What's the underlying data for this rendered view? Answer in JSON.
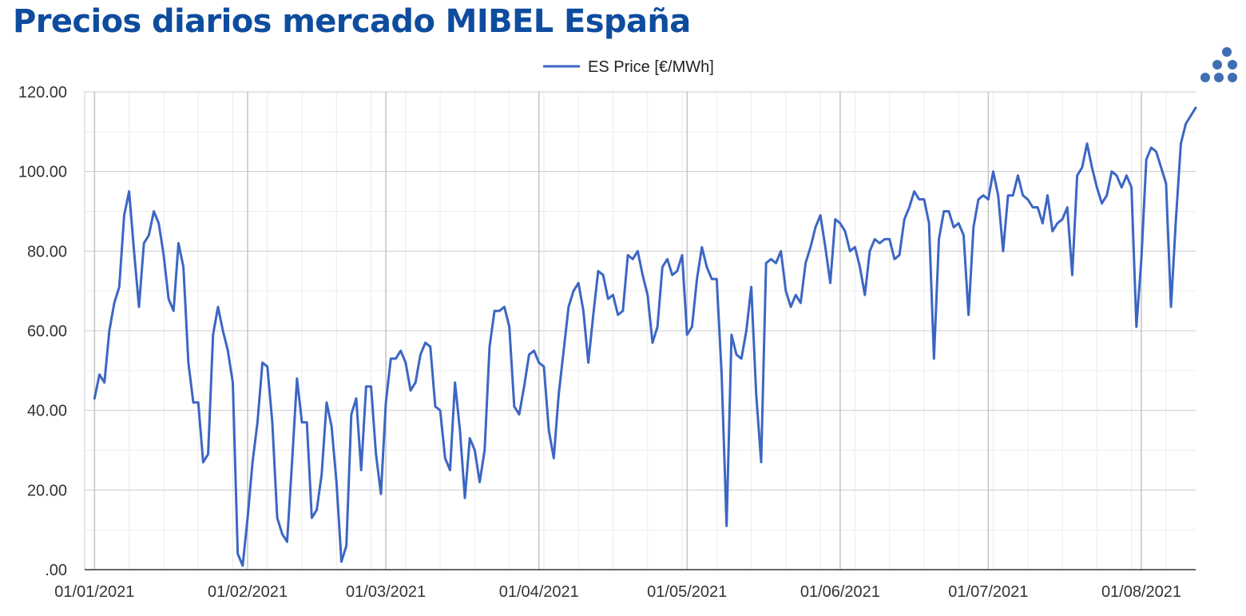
{
  "header": {
    "title": "Precios diarios mercado MIBEL España"
  },
  "logo": {
    "icon": "dots-logo-icon",
    "color": "#3f6fb3"
  },
  "chart_data": {
    "type": "line",
    "title": "Precios diarios mercado MIBEL España",
    "xlabel": "",
    "ylabel": "",
    "ylim": [
      0,
      120
    ],
    "y_ticks": [
      0,
      20,
      40,
      60,
      80,
      100,
      120
    ],
    "y_tick_labels": [
      ".00",
      "20.00",
      "40.00",
      "60.00",
      "80.00",
      "100.00",
      "120.00"
    ],
    "x_ticks": [
      "2021-01-01",
      "2021-02-01",
      "2021-03-01",
      "2021-04-01",
      "2021-05-01",
      "2021-06-01",
      "2021-07-01",
      "2021-08-01"
    ],
    "x_tick_labels": [
      "01/01/2021",
      "01/02/2021",
      "01/03/2021",
      "01/04/2021",
      "01/05/2021",
      "01/06/2021",
      "01/07/2021",
      "01/08/2021"
    ],
    "x_range": [
      "2020-12-30",
      "2021-08-12"
    ],
    "grid": true,
    "legend_position": "top-center",
    "series_color": "#3c66c4",
    "series": [
      {
        "name": "ES Price [€/MWh]",
        "points": [
          [
            "2021-01-01",
            43
          ],
          [
            "2021-01-02",
            49
          ],
          [
            "2021-01-03",
            47
          ],
          [
            "2021-01-04",
            60
          ],
          [
            "2021-01-05",
            67
          ],
          [
            "2021-01-06",
            71
          ],
          [
            "2021-01-07",
            89
          ],
          [
            "2021-01-08",
            95
          ],
          [
            "2021-01-09",
            80
          ],
          [
            "2021-01-10",
            66
          ],
          [
            "2021-01-11",
            82
          ],
          [
            "2021-01-12",
            84
          ],
          [
            "2021-01-13",
            90
          ],
          [
            "2021-01-14",
            87
          ],
          [
            "2021-01-15",
            79
          ],
          [
            "2021-01-16",
            68
          ],
          [
            "2021-01-17",
            65
          ],
          [
            "2021-01-18",
            82
          ],
          [
            "2021-01-19",
            76
          ],
          [
            "2021-01-20",
            52
          ],
          [
            "2021-01-21",
            42
          ],
          [
            "2021-01-22",
            42
          ],
          [
            "2021-01-23",
            27
          ],
          [
            "2021-01-24",
            29
          ],
          [
            "2021-01-25",
            59
          ],
          [
            "2021-01-26",
            66
          ],
          [
            "2021-01-27",
            60
          ],
          [
            "2021-01-28",
            55
          ],
          [
            "2021-01-29",
            47
          ],
          [
            "2021-01-30",
            4
          ],
          [
            "2021-01-31",
            1
          ],
          [
            "2021-02-01",
            13
          ],
          [
            "2021-02-02",
            27
          ],
          [
            "2021-02-03",
            37
          ],
          [
            "2021-02-04",
            52
          ],
          [
            "2021-02-05",
            51
          ],
          [
            "2021-02-06",
            37
          ],
          [
            "2021-02-07",
            13
          ],
          [
            "2021-02-08",
            9
          ],
          [
            "2021-02-09",
            7
          ],
          [
            "2021-02-10",
            27
          ],
          [
            "2021-02-11",
            48
          ],
          [
            "2021-02-12",
            37
          ],
          [
            "2021-02-13",
            37
          ],
          [
            "2021-02-14",
            13
          ],
          [
            "2021-02-15",
            15
          ],
          [
            "2021-02-16",
            24
          ],
          [
            "2021-02-17",
            42
          ],
          [
            "2021-02-18",
            36
          ],
          [
            "2021-02-19",
            22
          ],
          [
            "2021-02-20",
            2
          ],
          [
            "2021-02-21",
            6
          ],
          [
            "2021-02-22",
            39
          ],
          [
            "2021-02-23",
            43
          ],
          [
            "2021-02-24",
            25
          ],
          [
            "2021-02-25",
            46
          ],
          [
            "2021-02-26",
            46
          ],
          [
            "2021-02-27",
            29
          ],
          [
            "2021-02-28",
            19
          ],
          [
            "2021-03-01",
            42
          ],
          [
            "2021-03-02",
            53
          ],
          [
            "2021-03-03",
            53
          ],
          [
            "2021-03-04",
            55
          ],
          [
            "2021-03-05",
            52
          ],
          [
            "2021-03-06",
            45
          ],
          [
            "2021-03-07",
            47
          ],
          [
            "2021-03-08",
            54
          ],
          [
            "2021-03-09",
            57
          ],
          [
            "2021-03-10",
            56
          ],
          [
            "2021-03-11",
            41
          ],
          [
            "2021-03-12",
            40
          ],
          [
            "2021-03-13",
            28
          ],
          [
            "2021-03-14",
            25
          ],
          [
            "2021-03-15",
            47
          ],
          [
            "2021-03-16",
            35
          ],
          [
            "2021-03-17",
            18
          ],
          [
            "2021-03-18",
            33
          ],
          [
            "2021-03-19",
            30
          ],
          [
            "2021-03-20",
            22
          ],
          [
            "2021-03-21",
            30
          ],
          [
            "2021-03-22",
            56
          ],
          [
            "2021-03-23",
            65
          ],
          [
            "2021-03-24",
            65
          ],
          [
            "2021-03-25",
            66
          ],
          [
            "2021-03-26",
            61
          ],
          [
            "2021-03-27",
            41
          ],
          [
            "2021-03-28",
            39
          ],
          [
            "2021-03-29",
            46
          ],
          [
            "2021-03-30",
            54
          ],
          [
            "2021-03-31",
            55
          ],
          [
            "2021-04-01",
            52
          ],
          [
            "2021-04-02",
            51
          ],
          [
            "2021-04-03",
            35
          ],
          [
            "2021-04-04",
            28
          ],
          [
            "2021-04-05",
            44
          ],
          [
            "2021-04-06",
            55
          ],
          [
            "2021-04-07",
            66
          ],
          [
            "2021-04-08",
            70
          ],
          [
            "2021-04-09",
            72
          ],
          [
            "2021-04-10",
            65
          ],
          [
            "2021-04-11",
            52
          ],
          [
            "2021-04-12",
            64
          ],
          [
            "2021-04-13",
            75
          ],
          [
            "2021-04-14",
            74
          ],
          [
            "2021-04-15",
            68
          ],
          [
            "2021-04-16",
            69
          ],
          [
            "2021-04-17",
            64
          ],
          [
            "2021-04-18",
            65
          ],
          [
            "2021-04-19",
            79
          ],
          [
            "2021-04-20",
            78
          ],
          [
            "2021-04-21",
            80
          ],
          [
            "2021-04-22",
            74
          ],
          [
            "2021-04-23",
            69
          ],
          [
            "2021-04-24",
            57
          ],
          [
            "2021-04-25",
            61
          ],
          [
            "2021-04-26",
            76
          ],
          [
            "2021-04-27",
            78
          ],
          [
            "2021-04-28",
            74
          ],
          [
            "2021-04-29",
            75
          ],
          [
            "2021-04-30",
            79
          ],
          [
            "2021-05-01",
            59
          ],
          [
            "2021-05-02",
            61
          ],
          [
            "2021-05-03",
            73
          ],
          [
            "2021-05-04",
            81
          ],
          [
            "2021-05-05",
            76
          ],
          [
            "2021-05-06",
            73
          ],
          [
            "2021-05-07",
            73
          ],
          [
            "2021-05-08",
            49
          ],
          [
            "2021-05-09",
            11
          ],
          [
            "2021-05-10",
            59
          ],
          [
            "2021-05-11",
            54
          ],
          [
            "2021-05-12",
            53
          ],
          [
            "2021-05-13",
            60
          ],
          [
            "2021-05-14",
            71
          ],
          [
            "2021-05-15",
            44
          ],
          [
            "2021-05-16",
            27
          ],
          [
            "2021-05-17",
            77
          ],
          [
            "2021-05-18",
            78
          ],
          [
            "2021-05-19",
            77
          ],
          [
            "2021-05-20",
            80
          ],
          [
            "2021-05-21",
            70
          ],
          [
            "2021-05-22",
            66
          ],
          [
            "2021-05-23",
            69
          ],
          [
            "2021-05-24",
            67
          ],
          [
            "2021-05-25",
            77
          ],
          [
            "2021-05-26",
            81
          ],
          [
            "2021-05-27",
            86
          ],
          [
            "2021-05-28",
            89
          ],
          [
            "2021-05-29",
            81
          ],
          [
            "2021-05-30",
            72
          ],
          [
            "2021-05-31",
            88
          ],
          [
            "2021-06-01",
            87
          ],
          [
            "2021-06-02",
            85
          ],
          [
            "2021-06-03",
            80
          ],
          [
            "2021-06-04",
            81
          ],
          [
            "2021-06-05",
            76
          ],
          [
            "2021-06-06",
            69
          ],
          [
            "2021-06-07",
            80
          ],
          [
            "2021-06-08",
            83
          ],
          [
            "2021-06-09",
            82
          ],
          [
            "2021-06-10",
            83
          ],
          [
            "2021-06-11",
            83
          ],
          [
            "2021-06-12",
            78
          ],
          [
            "2021-06-13",
            79
          ],
          [
            "2021-06-14",
            88
          ],
          [
            "2021-06-15",
            91
          ],
          [
            "2021-06-16",
            95
          ],
          [
            "2021-06-17",
            93
          ],
          [
            "2021-06-18",
            93
          ],
          [
            "2021-06-19",
            87
          ],
          [
            "2021-06-20",
            53
          ],
          [
            "2021-06-21",
            83
          ],
          [
            "2021-06-22",
            90
          ],
          [
            "2021-06-23",
            90
          ],
          [
            "2021-06-24",
            86
          ],
          [
            "2021-06-25",
            87
          ],
          [
            "2021-06-26",
            84
          ],
          [
            "2021-06-27",
            64
          ],
          [
            "2021-06-28",
            86
          ],
          [
            "2021-06-29",
            93
          ],
          [
            "2021-06-30",
            94
          ],
          [
            "2021-07-01",
            93
          ],
          [
            "2021-07-02",
            100
          ],
          [
            "2021-07-03",
            94
          ],
          [
            "2021-07-04",
            80
          ],
          [
            "2021-07-05",
            94
          ],
          [
            "2021-07-06",
            94
          ],
          [
            "2021-07-07",
            99
          ],
          [
            "2021-07-08",
            94
          ],
          [
            "2021-07-09",
            93
          ],
          [
            "2021-07-10",
            91
          ],
          [
            "2021-07-11",
            91
          ],
          [
            "2021-07-12",
            87
          ],
          [
            "2021-07-13",
            94
          ],
          [
            "2021-07-14",
            85
          ],
          [
            "2021-07-15",
            87
          ],
          [
            "2021-07-16",
            88
          ],
          [
            "2021-07-17",
            91
          ],
          [
            "2021-07-18",
            74
          ],
          [
            "2021-07-19",
            99
          ],
          [
            "2021-07-20",
            101
          ],
          [
            "2021-07-21",
            107
          ],
          [
            "2021-07-22",
            101
          ],
          [
            "2021-07-23",
            96
          ],
          [
            "2021-07-24",
            92
          ],
          [
            "2021-07-25",
            94
          ],
          [
            "2021-07-26",
            100
          ],
          [
            "2021-07-27",
            99
          ],
          [
            "2021-07-28",
            96
          ],
          [
            "2021-07-29",
            99
          ],
          [
            "2021-07-30",
            96
          ],
          [
            "2021-07-31",
            61
          ],
          [
            "2021-08-01",
            78
          ],
          [
            "2021-08-02",
            103
          ],
          [
            "2021-08-03",
            106
          ],
          [
            "2021-08-04",
            105
          ],
          [
            "2021-08-05",
            101
          ],
          [
            "2021-08-06",
            97
          ],
          [
            "2021-08-07",
            66
          ],
          [
            "2021-08-08",
            88
          ],
          [
            "2021-08-09",
            107
          ],
          [
            "2021-08-10",
            112
          ],
          [
            "2021-08-11",
            114
          ],
          [
            "2021-08-12",
            116
          ]
        ]
      }
    ]
  }
}
